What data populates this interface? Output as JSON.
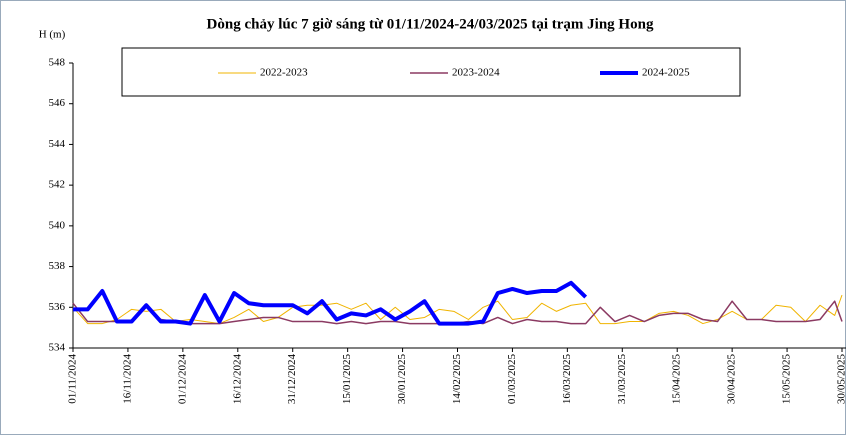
{
  "chart_data": {
    "type": "line",
    "title": "Dòng chảy lúc 7 giờ sáng từ 01/11/2024-24/03/2025 tại trạm Jing Hong",
    "y_label": "H (m)",
    "x": [
      "01/11/2024",
      "05/11/2024",
      "09/11/2024",
      "13/11/2024",
      "17/11/2024",
      "21/11/2024",
      "25/11/2024",
      "29/11/2024",
      "03/12/2024",
      "07/12/2024",
      "11/12/2024",
      "15/12/2024",
      "19/12/2024",
      "23/12/2024",
      "27/12/2024",
      "31/12/2024",
      "04/01/2025",
      "08/01/2025",
      "12/01/2025",
      "16/01/2025",
      "20/01/2025",
      "24/01/2025",
      "28/01/2025",
      "01/02/2025",
      "05/02/2025",
      "09/02/2025",
      "13/02/2025",
      "17/02/2025",
      "21/02/2025",
      "25/02/2025",
      "01/03/2025",
      "05/03/2025",
      "09/03/2025",
      "13/03/2025",
      "17/03/2025",
      "21/03/2025",
      "25/03/2025",
      "29/03/2025",
      "02/04/2025",
      "06/04/2025",
      "10/04/2025",
      "14/04/2025",
      "18/04/2025",
      "22/04/2025",
      "26/04/2025",
      "30/04/2025",
      "04/05/2025",
      "08/05/2025",
      "12/05/2025",
      "16/05/2025",
      "20/05/2025",
      "24/05/2025",
      "28/05/2025",
      "30/05/2025"
    ],
    "series": [
      {
        "name": "2022-2023",
        "color": "#f0b400",
        "width": 1,
        "values": [
          536.0,
          535.2,
          535.2,
          535.4,
          535.9,
          535.8,
          535.9,
          535.3,
          535.4,
          535.3,
          535.2,
          535.5,
          535.9,
          535.3,
          535.5,
          536.0,
          536.1,
          536.1,
          536.2,
          535.9,
          536.2,
          535.4,
          536.0,
          535.4,
          535.5,
          535.9,
          535.8,
          535.4,
          536.0,
          536.3,
          535.4,
          535.5,
          536.2,
          535.8,
          536.1,
          536.2,
          535.2,
          535.2,
          535.3,
          535.3,
          535.7,
          535.8,
          535.6,
          535.2,
          535.4,
          535.8,
          535.4,
          535.4,
          536.1,
          536.0,
          535.3,
          536.1,
          535.6,
          536.6
        ]
      },
      {
        "name": "2023-2024",
        "color": "#8b3a62",
        "width": 1.5,
        "values": [
          536.2,
          535.3,
          535.3,
          535.3,
          535.3,
          536.0,
          535.4,
          535.3,
          535.2,
          535.2,
          535.2,
          535.3,
          535.4,
          535.5,
          535.5,
          535.3,
          535.3,
          535.3,
          535.2,
          535.3,
          535.2,
          535.3,
          535.3,
          535.2,
          535.2,
          535.2,
          535.2,
          535.3,
          535.2,
          535.5,
          535.2,
          535.4,
          535.3,
          535.3,
          535.2,
          535.2,
          536.0,
          535.3,
          535.6,
          535.3,
          535.6,
          535.7,
          535.7,
          535.4,
          535.3,
          536.3,
          535.4,
          535.4,
          535.3,
          535.3,
          535.3,
          535.4,
          536.3,
          535.3
        ]
      },
      {
        "name": "2024-2025",
        "color": "#0000ff",
        "width": 4,
        "values": [
          535.9,
          535.9,
          536.8,
          535.3,
          535.3,
          536.1,
          535.3,
          535.3,
          535.2,
          536.6,
          535.3,
          536.7,
          536.2,
          536.1,
          536.1,
          536.1,
          535.7,
          536.3,
          535.4,
          535.7,
          535.6,
          535.9,
          535.4,
          535.8,
          536.3,
          535.2,
          535.2,
          535.2,
          535.3,
          536.7,
          536.9,
          536.7,
          536.8,
          536.8,
          537.2,
          536.5,
          null,
          null,
          null,
          null,
          null,
          null,
          null,
          null,
          null,
          null,
          null,
          null,
          null,
          null,
          null,
          null,
          null,
          null
        ]
      }
    ],
    "xlim": [
      "01/11/2024",
      "30/05/2025"
    ],
    "xticks": [
      "01/11/2024",
      "16/11/2024",
      "01/12/2024",
      "16/12/2024",
      "31/12/2024",
      "15/01/2025",
      "30/01/2025",
      "14/02/2025",
      "01/03/2025",
      "16/03/2025",
      "31/03/2025",
      "15/04/2025",
      "30/04/2025",
      "15/05/2025",
      "30/05/2025"
    ],
    "ylim": [
      534,
      548
    ],
    "yticks": [
      534,
      536,
      538,
      540,
      542,
      544,
      546,
      548
    ],
    "grid": false,
    "legend": "top"
  }
}
